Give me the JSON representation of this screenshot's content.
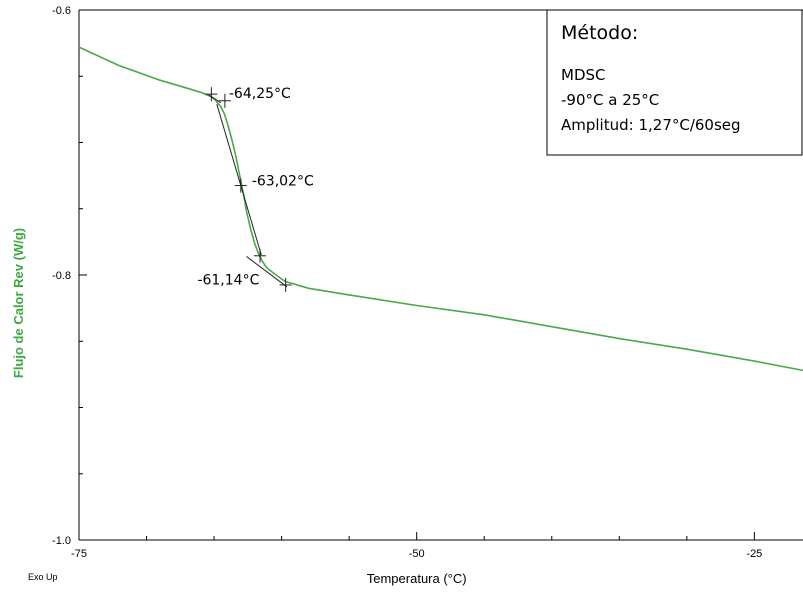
{
  "chart_data": {
    "type": "line",
    "xlabel": "Temperatura (°C)",
    "ylabel": "Flujo de Calor Rev (W/g)",
    "corner_label": "Exo Up",
    "xlim": [
      -75,
      -21.4
    ],
    "ylim": [
      -1.0,
      -0.6
    ],
    "x_ticks": [
      {
        "value": -75,
        "label": "-75"
      },
      {
        "value": -50,
        "label": "-50"
      },
      {
        "value": -25,
        "label": "-25"
      }
    ],
    "y_ticks": [
      {
        "value": -0.6,
        "label": "-0.6"
      },
      {
        "value": -0.8,
        "label": "-0.8"
      },
      {
        "value": -1.0,
        "label": "-1.0"
      }
    ],
    "grid": false,
    "colors": {
      "series": "#49a84b",
      "axis_title": "#3fa840",
      "tangent": "#222222"
    },
    "series": [
      {
        "x": [
          -75.0,
          -72.0,
          -69.0,
          -67.0,
          -66.0,
          -65.3,
          -64.9,
          -64.5,
          -64.25,
          -64.0,
          -63.7,
          -63.4,
          -63.2,
          -63.02,
          -62.8,
          -62.6,
          -62.3,
          -62.0,
          -61.7,
          -61.4,
          -61.14,
          -60.8,
          -60.4,
          -60.0,
          -59.7,
          -59.0,
          -58.0,
          -55.0,
          -50.0,
          -45.0,
          -40.0,
          -35.0,
          -30.0,
          -25.0,
          -21.4
        ],
        "y": [
          -0.628,
          -0.642,
          -0.653,
          -0.659,
          -0.662,
          -0.665,
          -0.668,
          -0.673,
          -0.678,
          -0.686,
          -0.697,
          -0.71,
          -0.72,
          -0.729,
          -0.74,
          -0.752,
          -0.765,
          -0.776,
          -0.784,
          -0.79,
          -0.794,
          -0.797,
          -0.8,
          -0.803,
          -0.805,
          -0.807,
          -0.81,
          -0.815,
          -0.823,
          -0.83,
          -0.839,
          -0.848,
          -0.856,
          -0.865,
          -0.872
        ]
      }
    ],
    "tangent_lines": [
      {
        "x": [
          -65.4,
          -64.5
        ],
        "y": [
          -0.664,
          -0.67
        ]
      },
      {
        "x": [
          -64.8,
          -61.5
        ],
        "y": [
          -0.671,
          -0.785
        ]
      },
      {
        "x": [
          -62.6,
          -59.6
        ],
        "y": [
          -0.786,
          -0.809
        ]
      }
    ],
    "markers": [
      {
        "x": -65.2,
        "y": -0.6635
      },
      {
        "x": -64.2,
        "y": -0.6685
      },
      {
        "x": -63.02,
        "y": -0.7325
      },
      {
        "x": -61.6,
        "y": -0.7855
      },
      {
        "x": -59.7,
        "y": -0.8075
      }
    ],
    "annotations": [
      {
        "text": "-64,25°C",
        "x": -64.2,
        "y": -0.6625,
        "anchor": "start"
      },
      {
        "text": "-63,02°C",
        "x": -62.5,
        "y": -0.7285,
        "anchor": "start"
      },
      {
        "text": "-61,14°C",
        "x": -61.5,
        "y": -0.8035,
        "anchor": "end"
      }
    ],
    "legend_box": {
      "title": "Método:",
      "lines": [
        "MDSC",
        "-90°C a 25°C",
        "Amplitud: 1,27°C/60seg"
      ],
      "position": "top-right"
    }
  }
}
